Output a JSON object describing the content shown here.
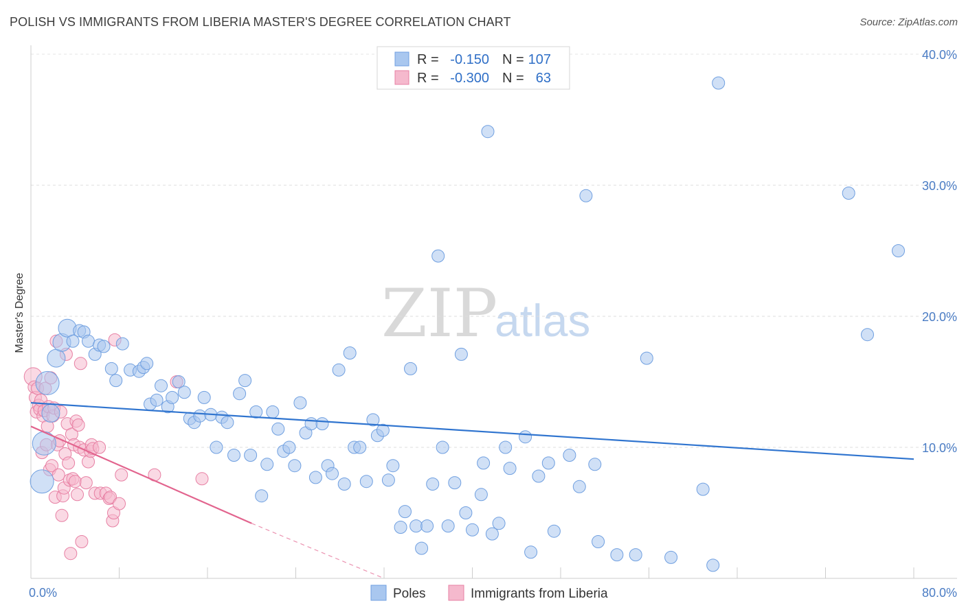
{
  "title": "POLISH VS IMMIGRANTS FROM LIBERIA MASTER'S DEGREE CORRELATION CHART",
  "source": "Source: ZipAtlas.com",
  "watermark": {
    "zip": "ZIP",
    "atlas": "atlas"
  },
  "colors": {
    "blue_fill": "#a9c7ef",
    "blue_stroke": "#6f9fe0",
    "blue_line": "#2f74cf",
    "pink_fill": "#f5b9cd",
    "pink_stroke": "#e77fa3",
    "pink_line": "#e2648e",
    "tick_text": "#4a7cc4",
    "grid": "#dddddd"
  },
  "legend": {
    "rows": [
      {
        "r_label": "R =",
        "r_value": "-0.150",
        "n_label": "N =",
        "n_value": "107"
      },
      {
        "r_label": "R =",
        "r_value": "-0.300",
        "n_label": "N =",
        "n_value": "63"
      }
    ]
  },
  "chart_data": {
    "type": "scatter",
    "ylabel": "Master's Degree",
    "xlim": [
      0,
      80
    ],
    "ylim": [
      0,
      40
    ],
    "y_ticks": [
      {
        "value": 10,
        "label": "10.0%"
      },
      {
        "value": 20,
        "label": "20.0%"
      },
      {
        "value": 30,
        "label": "30.0%"
      },
      {
        "value": 40,
        "label": "40.0%"
      }
    ],
    "x_tick_labels": [
      {
        "value": 0,
        "label": "0.0%"
      },
      {
        "value": 80,
        "label": "80.0%"
      }
    ],
    "legend_position": "top-center",
    "series": [
      {
        "name": "Poles",
        "color": "#a9c7ef",
        "trend": {
          "x": [
            0,
            80
          ],
          "y": [
            13.4,
            9.1
          ]
        },
        "points": [
          [
            1.2,
            10.3,
            3
          ],
          [
            1.0,
            7.4,
            3
          ],
          [
            1.5,
            14.9,
            3
          ],
          [
            1.8,
            12.6,
            2
          ],
          [
            2.3,
            16.8,
            2
          ],
          [
            2.8,
            18.0,
            2
          ],
          [
            3.3,
            19.1,
            2
          ],
          [
            3.8,
            18.1,
            1
          ],
          [
            4.4,
            18.9,
            1
          ],
          [
            4.8,
            18.8,
            1
          ],
          [
            5.2,
            18.1,
            1
          ],
          [
            5.8,
            17.1,
            1
          ],
          [
            6.2,
            17.8,
            1
          ],
          [
            6.6,
            17.7,
            1
          ],
          [
            7.3,
            16.0,
            1
          ],
          [
            7.7,
            15.1,
            1
          ],
          [
            8.3,
            17.9,
            1
          ],
          [
            9.0,
            15.9,
            1
          ],
          [
            9.8,
            15.8,
            1
          ],
          [
            10.2,
            16.1,
            1
          ],
          [
            10.5,
            16.4,
            1
          ],
          [
            10.8,
            13.3,
            1
          ],
          [
            11.4,
            13.6,
            1
          ],
          [
            11.8,
            14.7,
            1
          ],
          [
            12.4,
            13.1,
            1
          ],
          [
            12.8,
            13.8,
            1
          ],
          [
            13.4,
            15.0,
            1
          ],
          [
            13.9,
            14.2,
            1
          ],
          [
            14.4,
            12.2,
            1
          ],
          [
            14.8,
            11.9,
            1
          ],
          [
            15.3,
            12.4,
            1
          ],
          [
            15.7,
            13.8,
            1
          ],
          [
            16.3,
            12.5,
            1
          ],
          [
            16.8,
            10.0,
            1
          ],
          [
            17.3,
            12.3,
            1
          ],
          [
            17.8,
            11.9,
            1
          ],
          [
            18.4,
            9.4,
            1
          ],
          [
            18.9,
            14.1,
            1
          ],
          [
            19.4,
            15.1,
            1
          ],
          [
            19.9,
            9.4,
            1
          ],
          [
            20.4,
            12.7,
            1
          ],
          [
            20.9,
            6.3,
            1
          ],
          [
            21.4,
            8.7,
            1
          ],
          [
            21.9,
            12.7,
            1
          ],
          [
            22.4,
            11.4,
            1
          ],
          [
            22.9,
            9.7,
            1
          ],
          [
            23.4,
            10.0,
            1
          ],
          [
            23.9,
            8.6,
            1
          ],
          [
            24.4,
            13.4,
            1
          ],
          [
            24.9,
            11.1,
            1
          ],
          [
            25.4,
            11.8,
            1
          ],
          [
            25.8,
            7.7,
            1
          ],
          [
            26.4,
            11.8,
            1
          ],
          [
            26.9,
            8.6,
            1
          ],
          [
            27.3,
            8.0,
            1
          ],
          [
            27.9,
            15.9,
            1
          ],
          [
            28.4,
            7.2,
            1
          ],
          [
            28.9,
            17.2,
            1
          ],
          [
            29.3,
            10.0,
            1
          ],
          [
            29.8,
            10.0,
            1
          ],
          [
            30.4,
            7.4,
            1
          ],
          [
            31.0,
            12.1,
            1
          ],
          [
            31.4,
            10.9,
            1
          ],
          [
            31.9,
            11.3,
            1
          ],
          [
            32.4,
            7.5,
            1
          ],
          [
            32.8,
            8.6,
            1
          ],
          [
            33.5,
            3.9,
            1
          ],
          [
            33.9,
            5.1,
            1
          ],
          [
            34.4,
            16.0,
            1
          ],
          [
            34.9,
            4.0,
            1
          ],
          [
            35.4,
            2.3,
            1
          ],
          [
            35.9,
            4.0,
            1
          ],
          [
            36.4,
            7.2,
            1
          ],
          [
            36.9,
            24.6,
            1
          ],
          [
            37.3,
            10.0,
            1
          ],
          [
            37.8,
            4.0,
            1
          ],
          [
            38.4,
            7.3,
            1
          ],
          [
            39.0,
            17.1,
            1
          ],
          [
            39.4,
            5.0,
            1
          ],
          [
            40.0,
            3.7,
            1
          ],
          [
            40.8,
            6.4,
            1
          ],
          [
            41.4,
            34.1,
            1
          ],
          [
            41.8,
            3.4,
            1
          ],
          [
            42.4,
            4.2,
            1
          ],
          [
            43.0,
            10.0,
            1
          ],
          [
            43.4,
            8.4,
            1
          ],
          [
            44.8,
            10.8,
            1
          ],
          [
            45.3,
            2.0,
            1
          ],
          [
            46.0,
            7.8,
            1
          ],
          [
            46.9,
            8.8,
            1
          ],
          [
            47.4,
            3.6,
            1
          ],
          [
            48.8,
            9.4,
            1
          ],
          [
            49.7,
            7.0,
            1
          ],
          [
            50.3,
            29.2,
            1
          ],
          [
            51.1,
            8.7,
            1
          ],
          [
            51.4,
            2.8,
            1
          ],
          [
            53.1,
            1.8,
            1
          ],
          [
            54.8,
            1.8,
            1
          ],
          [
            55.8,
            16.8,
            1
          ],
          [
            58.0,
            1.6,
            1
          ],
          [
            60.9,
            6.8,
            1
          ],
          [
            61.8,
            1.0,
            1
          ],
          [
            62.3,
            37.8,
            1
          ],
          [
            74.1,
            29.4,
            1
          ],
          [
            75.8,
            18.6,
            1
          ],
          [
            78.6,
            25.0,
            1
          ],
          [
            41.0,
            8.8,
            1
          ]
        ]
      },
      {
        "name": "Immigrants from Liberia",
        "color": "#f5b9cd",
        "trend": {
          "x": [
            0,
            20.0
          ],
          "y": [
            11.6,
            4.2
          ]
        },
        "trend_dashed": {
          "x": [
            20.0,
            32.0
          ],
          "y": [
            4.2,
            0.0
          ]
        },
        "points": [
          [
            0.2,
            15.4,
            2
          ],
          [
            0.3,
            14.6,
            1
          ],
          [
            0.4,
            13.8,
            1
          ],
          [
            0.5,
            12.7,
            1
          ],
          [
            0.6,
            14.5,
            1
          ],
          [
            0.7,
            13.2,
            1
          ],
          [
            0.8,
            12.9,
            1
          ],
          [
            0.9,
            13.6,
            1
          ],
          [
            1.0,
            9.6,
            1
          ],
          [
            1.1,
            12.4,
            1
          ],
          [
            1.2,
            12.8,
            1
          ],
          [
            1.3,
            14.5,
            1
          ],
          [
            1.4,
            10.2,
            1
          ],
          [
            1.5,
            11.6,
            1
          ],
          [
            1.6,
            13.1,
            1
          ],
          [
            1.7,
            8.3,
            1
          ],
          [
            1.8,
            15.3,
            1
          ],
          [
            1.9,
            8.6,
            1
          ],
          [
            2.0,
            12.4,
            1
          ],
          [
            2.1,
            13.0,
            1
          ],
          [
            2.2,
            6.2,
            1
          ],
          [
            2.3,
            18.1,
            1
          ],
          [
            2.4,
            10.2,
            1
          ],
          [
            2.5,
            7.9,
            1
          ],
          [
            2.6,
            10.5,
            1
          ],
          [
            2.7,
            12.7,
            1
          ],
          [
            2.8,
            4.8,
            1
          ],
          [
            2.9,
            6.3,
            1
          ],
          [
            3.0,
            6.9,
            1
          ],
          [
            3.1,
            9.5,
            1
          ],
          [
            3.2,
            17.1,
            1
          ],
          [
            3.3,
            11.8,
            1
          ],
          [
            3.4,
            8.8,
            1
          ],
          [
            3.5,
            7.5,
            1
          ],
          [
            3.6,
            1.9,
            1
          ],
          [
            3.7,
            11.0,
            1
          ],
          [
            3.8,
            7.6,
            1
          ],
          [
            3.9,
            10.2,
            1
          ],
          [
            4.0,
            7.4,
            1
          ],
          [
            4.1,
            12.0,
            1
          ],
          [
            4.2,
            6.4,
            1
          ],
          [
            4.3,
            11.7,
            1
          ],
          [
            4.4,
            10.0,
            1
          ],
          [
            4.5,
            16.4,
            1
          ],
          [
            4.6,
            2.8,
            1
          ],
          [
            4.8,
            9.8,
            1
          ],
          [
            5.0,
            7.3,
            1
          ],
          [
            5.2,
            8.9,
            1
          ],
          [
            5.4,
            9.7,
            1
          ],
          [
            5.5,
            10.2,
            1
          ],
          [
            5.6,
            9.9,
            1
          ],
          [
            5.8,
            6.5,
            1
          ],
          [
            6.2,
            10.0,
            1
          ],
          [
            6.3,
            6.5,
            1
          ],
          [
            6.8,
            6.5,
            1
          ],
          [
            7.1,
            6.1,
            1
          ],
          [
            7.2,
            6.2,
            1
          ],
          [
            7.4,
            4.4,
            1
          ],
          [
            7.5,
            5.0,
            1
          ],
          [
            7.6,
            18.2,
            1
          ],
          [
            8.0,
            5.7,
            1
          ],
          [
            8.2,
            7.9,
            1
          ],
          [
            11.2,
            7.9,
            1
          ],
          [
            13.2,
            15.0,
            1
          ],
          [
            15.5,
            7.6,
            1
          ]
        ]
      }
    ]
  }
}
